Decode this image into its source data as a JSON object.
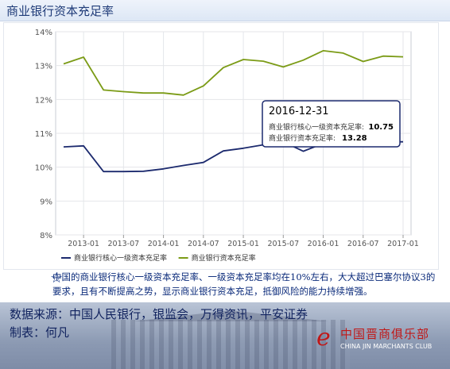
{
  "page": {
    "title": "商业银行资本充足率"
  },
  "chart_data": {
    "type": "line",
    "x": [
      "2012-12",
      "2013-03",
      "2013-06",
      "2013-09",
      "2013-12",
      "2014-03",
      "2014-06",
      "2014-09",
      "2014-12",
      "2015-03",
      "2015-06",
      "2015-09",
      "2015-12",
      "2016-03",
      "2016-06",
      "2016-09",
      "2016-12",
      "2017-03"
    ],
    "x_ticks": [
      "2013-01",
      "2013-07",
      "2014-01",
      "2014-07",
      "2015-01",
      "2015-07",
      "2016-01",
      "2016-07",
      "2017-01"
    ],
    "y_ticks": [
      "8%",
      "9%",
      "10%",
      "11%",
      "12%",
      "13%",
      "14%"
    ],
    "ylim": [
      8,
      14
    ],
    "grid": true,
    "legend_position": "bottom-left",
    "series": [
      {
        "name": "商业银行核心一级资本充足率",
        "color": "#1c2a6e",
        "values": [
          10.6,
          10.63,
          9.87,
          9.87,
          9.88,
          9.95,
          10.05,
          10.14,
          10.48,
          10.56,
          10.66,
          10.75,
          10.47,
          10.7,
          10.75,
          10.8,
          10.75,
          10.75
        ]
      },
      {
        "name": "商业银行资本充足率",
        "color": "#7b9b16",
        "values": [
          13.05,
          13.25,
          12.28,
          12.23,
          12.19,
          12.19,
          12.13,
          12.4,
          12.94,
          13.18,
          13.13,
          12.96,
          13.16,
          13.44,
          13.37,
          13.12,
          13.28,
          13.26
        ]
      }
    ],
    "tooltip": {
      "date": "2016-12-31",
      "line1_label": "商业银行核心一级资本充足率:",
      "line1_value": "10.75",
      "line2_label": "商业银行资本充足率:",
      "line2_value": "13.28"
    }
  },
  "note": {
    "text": "中国的商业银行核心一级资本充足率、一级资本充足率均在10%左右，大大超过巴塞尔协议3的要求，且有不断提高之势，显示商业银行资本充足，抵御风险的能力持续增强。"
  },
  "footer": {
    "source": "数据来源：中国人民银行，银监会，万得资讯，平安证券",
    "author": "制表：何凡",
    "logo_cn": "中国晋商俱乐部",
    "logo_en": "CHINA JIN MARCHANTS CLUB"
  },
  "colors": {
    "accent": "#1f3b78",
    "footer_text": "#10225e",
    "logo_red": "#c01818"
  }
}
